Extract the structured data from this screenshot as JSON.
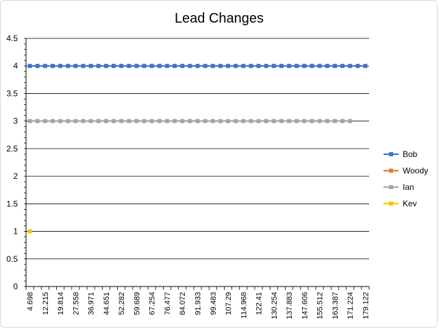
{
  "chart_data": {
    "type": "line",
    "title": "Lead Changes",
    "xlabel": "",
    "ylabel": "",
    "ylim": [
      0,
      4.5
    ],
    "y_ticks": [
      "0",
      "0.5",
      "1",
      "1.5",
      "2",
      "2.5",
      "3",
      "3.5",
      "4",
      "4.5"
    ],
    "x_tick_labels": [
      "4.698",
      "12.215",
      "19.814",
      "27.558",
      "36.971",
      "44.651",
      "52.282",
      "59.689",
      "67.254",
      "76.477",
      "84.072",
      "91.933",
      "99.483",
      "107.29",
      "114.968",
      "122.41",
      "130.254",
      "137.883",
      "147.606",
      "155.512",
      "163.387",
      "171.224",
      "179.122"
    ],
    "category_count": 45,
    "grid": "horizontal",
    "legend_position": "right",
    "series": [
      {
        "name": "Bob",
        "color": "#4472C4",
        "value": 4,
        "first_index": 0,
        "last_index": 44
      },
      {
        "name": "Woody",
        "color": "#ED7D31",
        "value": null,
        "first_index": null,
        "last_index": null
      },
      {
        "name": "Ian",
        "color": "#A5A5A5",
        "value": 3,
        "first_index": 0,
        "last_index": 42
      },
      {
        "name": "Kev",
        "color": "#FFC000",
        "value": 1,
        "first_index": 0,
        "last_index": 0
      }
    ]
  }
}
